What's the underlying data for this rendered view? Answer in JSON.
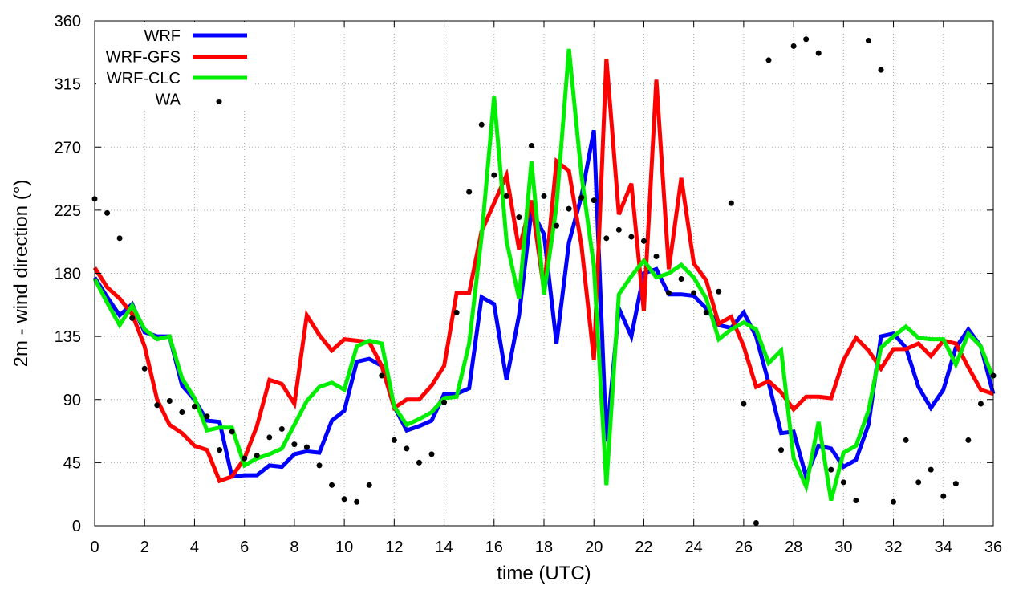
{
  "chart_data": {
    "type": "line",
    "title": "",
    "xlabel": "time (UTC)",
    "ylabel": "2m - wind direction (°)",
    "xlim": [
      0,
      36
    ],
    "ylim": [
      0,
      360
    ],
    "xticks": [
      "0",
      "2",
      "4",
      "6",
      "8",
      "10",
      "12",
      "14",
      "16",
      "18",
      "20",
      "22",
      "24",
      "26",
      "28",
      "30",
      "32",
      "34",
      "36"
    ],
    "yticks": [
      "0",
      "45",
      "90",
      "135",
      "180",
      "225",
      "270",
      "315",
      "360"
    ],
    "grid": true,
    "legend_position": "top-left",
    "x": [
      0,
      0.5,
      1,
      1.5,
      2,
      2.5,
      3,
      3.5,
      4,
      4.5,
      5,
      5.5,
      6,
      6.5,
      7,
      7.5,
      8,
      8.5,
      9,
      9.5,
      10,
      10.5,
      11,
      11.5,
      12,
      12.5,
      13,
      13.5,
      14,
      14.5,
      15,
      15.5,
      16,
      16.5,
      17,
      17.5,
      18,
      18.5,
      19,
      19.5,
      20,
      20.5,
      21,
      21.5,
      22,
      22.5,
      23,
      23.5,
      24,
      24.5,
      25,
      25.5,
      26,
      26.5,
      27,
      27.5,
      28,
      28.5,
      29,
      29.5,
      30,
      30.5,
      31,
      31.5,
      32,
      32.5,
      33,
      33.5,
      34,
      34.5,
      35,
      35.5,
      36
    ],
    "series": [
      {
        "name": "WRF",
        "color": "#0000ff",
        "style": "line",
        "values": [
          177,
          163,
          150,
          158,
          138,
          135,
          135,
          100,
          90,
          75,
          74,
          35,
          36,
          36,
          43,
          42,
          51,
          53,
          52,
          75,
          82,
          117,
          119,
          114,
          85,
          68,
          71,
          75,
          94,
          94,
          98,
          163,
          158,
          104,
          150,
          225,
          208,
          130,
          202,
          235,
          282,
          60,
          155,
          135,
          180,
          183,
          165,
          165,
          164,
          155,
          143,
          141,
          152,
          135,
          102,
          66,
          67,
          35,
          57,
          55,
          42,
          47,
          72,
          135,
          137,
          127,
          99,
          84,
          97,
          127,
          140,
          128,
          94
        ]
      },
      {
        "name": "WRF-GFS",
        "color": "#ff0000",
        "style": "line",
        "values": [
          184,
          170,
          162,
          151,
          128,
          90,
          72,
          66,
          57,
          54,
          32,
          35,
          48,
          71,
          104,
          101,
          87,
          150,
          136,
          125,
          133,
          132,
          131,
          114,
          84,
          90,
          90,
          100,
          114,
          166,
          166,
          210,
          230,
          250,
          197,
          232,
          168,
          260,
          253,
          200,
          118,
          333,
          222,
          244,
          153,
          318,
          183,
          248,
          187,
          175,
          144,
          149,
          128,
          99,
          103,
          95,
          83,
          92,
          92,
          91,
          118,
          134,
          125,
          112,
          126,
          126,
          130,
          121,
          132,
          130,
          113,
          97,
          94
        ]
      },
      {
        "name": "WRF-CLC",
        "color": "#00ee00",
        "style": "line",
        "values": [
          176,
          159,
          143,
          157,
          140,
          133,
          135,
          105,
          91,
          68,
          70,
          70,
          43,
          48,
          51,
          55,
          72,
          89,
          99,
          102,
          97,
          128,
          132,
          130,
          85,
          72,
          76,
          81,
          91,
          92,
          130,
          206,
          306,
          203,
          162,
          260,
          165,
          228,
          340,
          250,
          185,
          29,
          165,
          178,
          189,
          177,
          180,
          186,
          177,
          162,
          133,
          140,
          145,
          140,
          116,
          125,
          48,
          28,
          74,
          18,
          52,
          57,
          82,
          127,
          135,
          142,
          134,
          133,
          133,
          115,
          137,
          128,
          105
        ]
      },
      {
        "name": "WA",
        "color": "#000000",
        "style": "points",
        "x": [
          0,
          0.5,
          1,
          1.5,
          2,
          2.5,
          3,
          3.5,
          4,
          4.5,
          5,
          5.5,
          6,
          6.5,
          7,
          7.5,
          8,
          8.5,
          9,
          9.5,
          10,
          10.5,
          11,
          11.5,
          12,
          12.5,
          13,
          13.5,
          14,
          14.5,
          15,
          15.5,
          16,
          16.5,
          17,
          17.5,
          18,
          18.5,
          19,
          19.5,
          20,
          20.5,
          21,
          21.5,
          22,
          22.5,
          23,
          23.5,
          24,
          24.5,
          25,
          25.5,
          26,
          26.5,
          27,
          27.5,
          28,
          28.5,
          29,
          29.5,
          30,
          30.5,
          31,
          31.5,
          32,
          32.5,
          33,
          33.5,
          34,
          34.5,
          35,
          35.5,
          36
        ],
        "values": [
          233,
          223,
          205,
          148,
          112,
          86,
          89,
          81,
          85,
          78,
          54,
          67,
          48,
          50,
          63,
          69,
          58,
          56,
          43,
          29,
          19,
          17,
          29,
          107,
          61,
          55,
          45,
          51,
          88,
          152,
          238,
          286,
          250,
          235,
          220,
          271,
          235,
          214,
          226,
          234,
          232,
          205,
          211,
          206,
          203,
          192,
          166,
          176,
          166,
          152,
          167,
          230,
          87,
          2,
          332,
          54,
          342,
          347,
          337,
          40,
          31,
          18,
          346,
          325,
          17,
          61,
          31,
          40,
          21,
          30,
          61,
          87,
          107
        ]
      }
    ]
  }
}
